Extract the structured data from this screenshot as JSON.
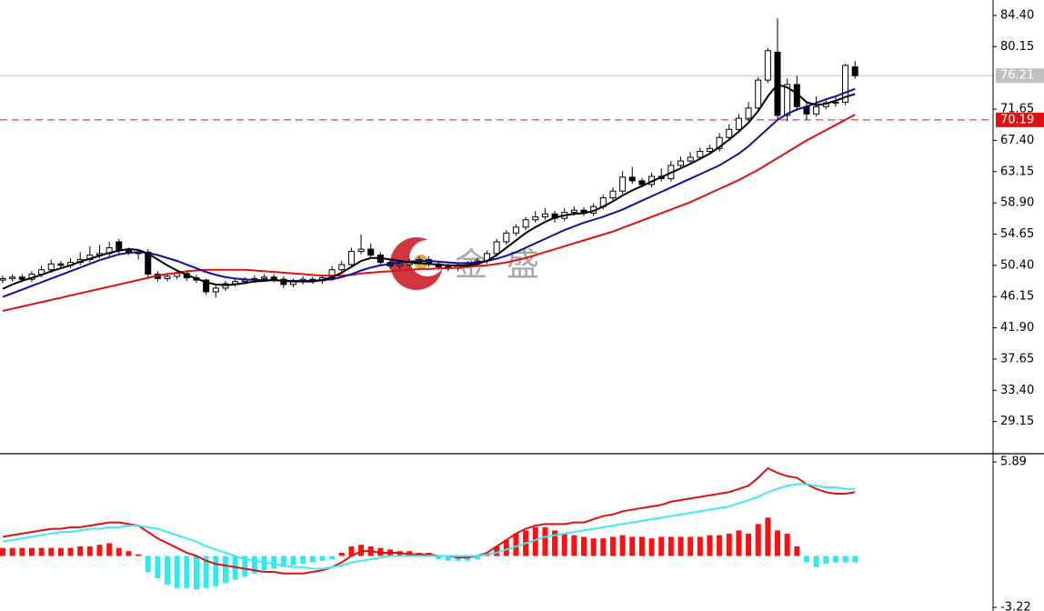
{
  "watermark": [
    "金",
    "盛"
  ],
  "chart_data": [
    {
      "type": "candlestick",
      "up_color": "#ffffff",
      "down_color": "#000000",
      "ylim": [
        24.9,
        86.5
      ],
      "yticks": [
        {
          "value": 84.4,
          "label": "84.40"
        },
        {
          "value": 80.15,
          "label": "80.15"
        },
        {
          "value": 71.65,
          "label": "71.65"
        },
        {
          "value": 67.4,
          "label": "67.40"
        },
        {
          "value": 63.15,
          "label": "63.15"
        },
        {
          "value": 58.9,
          "label": "58.90"
        },
        {
          "value": 54.65,
          "label": "54.65"
        },
        {
          "value": 50.4,
          "label": "50.40"
        },
        {
          "value": 46.15,
          "label": "46.15"
        },
        {
          "value": 41.9,
          "label": "41.90"
        },
        {
          "value": 37.65,
          "label": "37.65"
        },
        {
          "value": 33.4,
          "label": "33.40"
        },
        {
          "value": 29.15,
          "label": "29.15"
        }
      ],
      "last_price": 76.21,
      "level": 70.19,
      "open": [
        48.4,
        48.6,
        48.8,
        48.5,
        49.2,
        49.8,
        50.6,
        50.4,
        50.8,
        51.2,
        51.8,
        52.0,
        53.6,
        52.4,
        52.2,
        52.2,
        49.2,
        48.6,
        48.9,
        49.3,
        48.7,
        48.4,
        46.8,
        47.3,
        47.9,
        48.2,
        48.4,
        48.6,
        48.8,
        48.5,
        47.8,
        48.2,
        48.5,
        48.3,
        48.7,
        49.8,
        50.5,
        52.3,
        52.6,
        51.8,
        50.8,
        50.3,
        50.5,
        50.9,
        51.2,
        50.6,
        50.2,
        50.0,
        50.4,
        50.6,
        51.0,
        52.0,
        53.6,
        54.8,
        55.6,
        56.6,
        57.0,
        57.4,
        56.8,
        57.6,
        57.9,
        57.5,
        58.4,
        59.6,
        60.5,
        62.4,
        61.9,
        61.4,
        62.5,
        62.2,
        64.0,
        64.6,
        65.1,
        65.9,
        66.3,
        67.8,
        68.9,
        70.4,
        71.8,
        75.6,
        79.4,
        70.8,
        75.0,
        72.0,
        71.0,
        72.0,
        72.5,
        72.6,
        77.4
      ],
      "high": [
        49.0,
        49.2,
        49.2,
        49.6,
        50.4,
        51.2,
        51.0,
        51.4,
        52.2,
        53.0,
        53.2,
        53.6,
        54.0,
        52.8,
        52.6,
        52.6,
        49.6,
        49.4,
        49.8,
        49.6,
        49.1,
        48.6,
        47.8,
        48.3,
        48.6,
        48.8,
        49.0,
        49.2,
        49.2,
        48.9,
        48.6,
        48.9,
        48.8,
        49.1,
        50.3,
        51.0,
        52.8,
        54.6,
        53.4,
        52.2,
        51.2,
        50.9,
        51.3,
        51.6,
        51.6,
        51.0,
        50.6,
        50.8,
        51.0,
        51.4,
        52.4,
        54.0,
        55.2,
        56.0,
        57.0,
        57.8,
        58.2,
        57.8,
        58.2,
        58.4,
        58.3,
        58.8,
        60.0,
        61.0,
        63.2,
        63.8,
        62.3,
        63.0,
        63.6,
        64.6,
        65.2,
        65.8,
        66.4,
        66.8,
        68.4,
        69.6,
        71.0,
        72.6,
        76.0,
        80.0,
        84.0,
        75.8,
        76.2,
        72.6,
        73.4,
        73.0,
        73.4,
        77.8,
        78.2
      ],
      "low": [
        48.0,
        48.2,
        48.1,
        48.1,
        48.8,
        49.4,
        50.0,
        50.0,
        50.4,
        50.8,
        51.4,
        51.6,
        52.0,
        51.8,
        51.2,
        48.8,
        48.2,
        48.2,
        48.5,
        48.3,
        48.0,
        46.4,
        46.0,
        46.9,
        47.5,
        47.8,
        48.0,
        48.2,
        48.1,
        47.3,
        47.4,
        47.8,
        47.9,
        47.9,
        48.3,
        49.4,
        50.1,
        51.9,
        51.4,
        50.4,
        49.9,
        49.9,
        50.1,
        50.5,
        50.2,
        49.8,
        49.6,
        49.6,
        50.0,
        50.2,
        50.6,
        51.6,
        53.2,
        54.4,
        55.2,
        56.2,
        56.6,
        56.2,
        56.4,
        57.2,
        57.1,
        57.1,
        58.0,
        59.2,
        60.1,
        61.5,
        61.0,
        61.0,
        61.8,
        61.8,
        63.6,
        64.2,
        64.7,
        65.5,
        65.9,
        67.4,
        68.5,
        70.0,
        71.4,
        75.2,
        70.2,
        70.0,
        71.4,
        70.2,
        70.6,
        71.6,
        72.0,
        72.2,
        75.8
      ],
      "close": [
        48.6,
        48.8,
        48.5,
        49.2,
        49.8,
        50.6,
        50.4,
        50.8,
        51.2,
        51.8,
        52.0,
        52.8,
        52.4,
        52.2,
        52.0,
        49.2,
        48.6,
        48.9,
        49.3,
        48.7,
        48.4,
        46.8,
        47.3,
        47.9,
        48.2,
        48.4,
        48.6,
        48.8,
        48.5,
        47.8,
        48.2,
        48.5,
        48.3,
        48.7,
        49.8,
        50.5,
        52.3,
        52.6,
        51.8,
        50.8,
        50.3,
        50.5,
        50.9,
        51.2,
        50.6,
        50.2,
        50.0,
        50.4,
        50.6,
        51.0,
        52.0,
        53.6,
        54.8,
        55.6,
        56.6,
        57.0,
        57.4,
        56.8,
        57.6,
        57.9,
        57.5,
        58.4,
        59.6,
        60.5,
        62.4,
        61.9,
        61.4,
        62.5,
        62.2,
        64.0,
        64.6,
        65.1,
        65.9,
        66.3,
        67.8,
        68.9,
        70.4,
        71.8,
        75.6,
        79.6,
        70.8,
        75.0,
        72.0,
        71.0,
        72.0,
        72.5,
        72.6,
        77.6,
        76.2
      ],
      "lines": [
        {
          "color": "#e01010",
          "values": [
            44.2,
            44.5,
            44.8,
            45.1,
            45.4,
            45.7,
            46.0,
            46.3,
            46.6,
            46.9,
            47.2,
            47.5,
            47.8,
            48.1,
            48.4,
            48.7,
            49.0,
            49.2,
            49.4,
            49.6,
            49.7,
            49.8,
            49.8,
            49.8,
            49.8,
            49.8,
            49.7,
            49.6,
            49.5,
            49.4,
            49.3,
            49.2,
            49.1,
            49.0,
            49.0,
            49.0,
            49.1,
            49.3,
            49.4,
            49.5,
            49.6,
            49.7,
            49.8,
            49.9,
            49.9,
            50.0,
            50.0,
            50.1,
            50.2,
            50.3,
            50.4,
            50.6,
            50.8,
            51.1,
            51.4,
            51.8,
            52.2,
            52.6,
            53.0,
            53.4,
            53.8,
            54.2,
            54.6,
            55.0,
            55.5,
            56.0,
            56.5,
            57.0,
            57.5,
            58.0,
            58.5,
            59.0,
            59.6,
            60.2,
            60.8,
            61.4,
            62.0,
            62.7,
            63.4,
            64.2,
            65.0,
            65.8,
            66.6,
            67.4,
            68.1,
            68.8,
            69.5,
            70.2,
            70.9
          ]
        },
        {
          "color": "#1010a0",
          "values": [
            46.1,
            46.6,
            47.1,
            47.6,
            48.1,
            48.6,
            49.1,
            49.6,
            50.1,
            50.6,
            51.1,
            51.5,
            51.9,
            52.1,
            52.2,
            52.1,
            51.8,
            51.4,
            51.0,
            50.5,
            50.0,
            49.5,
            49.1,
            48.8,
            48.6,
            48.5,
            48.4,
            48.4,
            48.4,
            48.3,
            48.3,
            48.3,
            48.3,
            48.4,
            48.5,
            48.8,
            49.2,
            49.7,
            50.1,
            50.4,
            50.6,
            50.8,
            50.9,
            51.0,
            51.0,
            50.9,
            50.8,
            50.7,
            50.7,
            50.8,
            51.0,
            51.3,
            51.7,
            52.2,
            52.8,
            53.4,
            54.0,
            54.6,
            55.2,
            55.7,
            56.2,
            56.6,
            57.0,
            57.5,
            58.0,
            58.6,
            59.2,
            59.8,
            60.4,
            61.0,
            61.6,
            62.2,
            62.8,
            63.4,
            64.0,
            64.8,
            65.6,
            66.6,
            67.8,
            69.0,
            70.2,
            71.0,
            71.6,
            72.0,
            72.5,
            73.0,
            73.4,
            73.9,
            74.4
          ]
        },
        {
          "color": "#000000",
          "values": [
            47.2,
            47.8,
            48.3,
            48.7,
            49.1,
            49.6,
            50.0,
            50.4,
            50.9,
            51.3,
            51.7,
            52.1,
            52.4,
            52.6,
            52.5,
            52.0,
            51.2,
            50.4,
            49.7,
            49.1,
            48.6,
            48.1,
            47.8,
            47.7,
            47.8,
            48.0,
            48.2,
            48.3,
            48.4,
            48.3,
            48.2,
            48.2,
            48.2,
            48.4,
            48.8,
            49.4,
            50.2,
            51.0,
            51.4,
            51.4,
            51.2,
            51.0,
            50.8,
            50.7,
            50.6,
            50.5,
            50.4,
            50.4,
            50.4,
            50.6,
            51.0,
            51.8,
            52.8,
            53.8,
            54.8,
            55.6,
            56.3,
            56.9,
            57.2,
            57.4,
            57.5,
            57.8,
            58.4,
            59.1,
            59.9,
            60.6,
            61.2,
            61.8,
            62.4,
            63.0,
            63.6,
            64.2,
            64.9,
            65.6,
            66.5,
            67.5,
            68.6,
            69.8,
            71.4,
            73.4,
            75.0,
            74.6,
            73.8,
            72.6,
            72.2,
            72.4,
            72.8,
            73.3,
            73.7
          ]
        }
      ]
    },
    {
      "type": "macd",
      "up_color": "#ff1010",
      "down_color": "#30e8f0",
      "ylim": [
        -3.45,
        6.35
      ],
      "yticks": [
        5.89,
        -3.22
      ],
      "histogram": [
        0.5,
        0.5,
        0.5,
        0.5,
        0.5,
        0.5,
        0.5,
        0.5,
        0.6,
        0.6,
        0.7,
        0.8,
        0.5,
        0.3,
        0.1,
        -1.0,
        -1.4,
        -1.8,
        -2.0,
        -2.0,
        -2.1,
        -2.0,
        -1.9,
        -1.7,
        -1.5,
        -1.3,
        -1.1,
        -0.9,
        -0.8,
        -0.7,
        -0.6,
        -0.5,
        -0.4,
        -0.3,
        -0.2,
        0.2,
        0.6,
        0.7,
        0.6,
        0.5,
        0.4,
        0.3,
        0.3,
        0.2,
        0.2,
        -0.2,
        -0.3,
        -0.3,
        -0.3,
        -0.2,
        0.2,
        0.6,
        1.0,
        1.4,
        1.6,
        1.8,
        1.8,
        1.6,
        1.4,
        1.3,
        1.2,
        1.1,
        1.1,
        1.2,
        1.3,
        1.2,
        1.2,
        1.1,
        1.2,
        1.2,
        1.2,
        1.2,
        1.2,
        1.3,
        1.3,
        1.4,
        1.6,
        1.4,
        2.0,
        2.4,
        1.6,
        1.4,
        0.6,
        -0.4,
        -0.7,
        -0.5,
        -0.4,
        -0.4,
        -0.4
      ],
      "lines": [
        {
          "color": "#e01010",
          "values": [
            1.2,
            1.3,
            1.4,
            1.5,
            1.6,
            1.7,
            1.7,
            1.8,
            1.8,
            1.9,
            2.0,
            2.1,
            2.1,
            2.0,
            1.9,
            1.5,
            1.1,
            0.8,
            0.5,
            0.2,
            0.0,
            -0.3,
            -0.5,
            -0.6,
            -0.7,
            -0.8,
            -0.9,
            -1.0,
            -1.0,
            -1.1,
            -1.1,
            -1.1,
            -1.0,
            -0.9,
            -0.7,
            -0.4,
            0.0,
            0.3,
            0.3,
            0.2,
            0.2,
            0.2,
            0.1,
            0.1,
            0.1,
            0.0,
            0.0,
            -0.1,
            -0.1,
            0.0,
            0.2,
            0.6,
            1.0,
            1.4,
            1.7,
            1.9,
            2.0,
            2.0,
            2.0,
            2.1,
            2.1,
            2.3,
            2.5,
            2.6,
            2.8,
            2.9,
            3.0,
            3.1,
            3.2,
            3.4,
            3.5,
            3.6,
            3.7,
            3.8,
            3.9,
            4.0,
            4.2,
            4.4,
            4.9,
            5.5,
            5.2,
            5.0,
            4.9,
            4.5,
            4.2,
            4.0,
            3.9,
            3.9,
            4.0
          ]
        },
        {
          "color": "#40e8f0",
          "values": [
            0.9,
            1.0,
            1.1,
            1.2,
            1.3,
            1.4,
            1.5,
            1.5,
            1.6,
            1.7,
            1.7,
            1.8,
            1.8,
            1.9,
            1.9,
            1.8,
            1.7,
            1.5,
            1.3,
            1.1,
            0.9,
            0.6,
            0.4,
            0.2,
            0.0,
            -0.2,
            -0.3,
            -0.4,
            -0.5,
            -0.6,
            -0.7,
            -0.7,
            -0.8,
            -0.8,
            -0.7,
            -0.6,
            -0.4,
            -0.3,
            -0.2,
            -0.1,
            0.0,
            0.0,
            0.0,
            0.0,
            0.0,
            0.0,
            0.0,
            0.0,
            0.0,
            0.0,
            0.1,
            0.2,
            0.4,
            0.6,
            0.8,
            1.0,
            1.2,
            1.3,
            1.4,
            1.5,
            1.6,
            1.7,
            1.8,
            1.9,
            2.0,
            2.1,
            2.2,
            2.3,
            2.4,
            2.5,
            2.6,
            2.7,
            2.8,
            2.9,
            3.0,
            3.1,
            3.3,
            3.5,
            3.7,
            4.0,
            4.2,
            4.4,
            4.5,
            4.5,
            4.4,
            4.3,
            4.3,
            4.2,
            4.2
          ]
        }
      ]
    }
  ]
}
